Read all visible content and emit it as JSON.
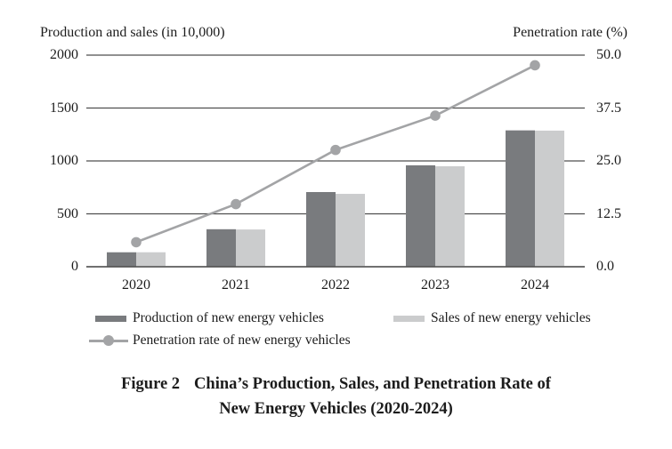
{
  "chart_data": {
    "type": "bar+line combo",
    "categories": [
      "2020",
      "2021",
      "2022",
      "2023",
      "2024"
    ],
    "series": [
      {
        "name": "Production of new energy vehicles",
        "type": "bar",
        "axis": "left",
        "color": "#797b7e",
        "values": [
          136.6,
          354.5,
          705.8,
          958.7,
          1288.8
        ]
      },
      {
        "name": "Sales of new energy vehicles",
        "type": "bar",
        "axis": "left",
        "color": "#cbcccd",
        "values": [
          136.7,
          352.1,
          688.7,
          949.5,
          1286.6
        ]
      },
      {
        "name": "Penetration rate of new energy vehicles",
        "type": "line",
        "axis": "right",
        "color": "#a3a4a6",
        "values": [
          5.8,
          14.8,
          27.6,
          35.7,
          47.6
        ]
      }
    ],
    "left_axis": {
      "title": "Production and sales (in 10,000)",
      "min": 0,
      "max": 2000,
      "ticks": [
        "2000",
        "1500",
        "1000",
        "500",
        "0"
      ]
    },
    "right_axis": {
      "title": "Penetration rate (%)",
      "min": 0,
      "max": 50,
      "ticks": [
        "50.0",
        "37.5",
        "25.0",
        "12.5",
        "0.0"
      ]
    },
    "grid": true,
    "legend_position": "bottom",
    "colors": {
      "grid": "#4f4f4f",
      "text": "#1c1c1c",
      "background": "#ffffff"
    }
  },
  "caption": {
    "label": "Figure 2",
    "line1": "China’s Production, Sales, and Penetration Rate of",
    "line2": "New Energy Vehicles (2020-2024)"
  }
}
